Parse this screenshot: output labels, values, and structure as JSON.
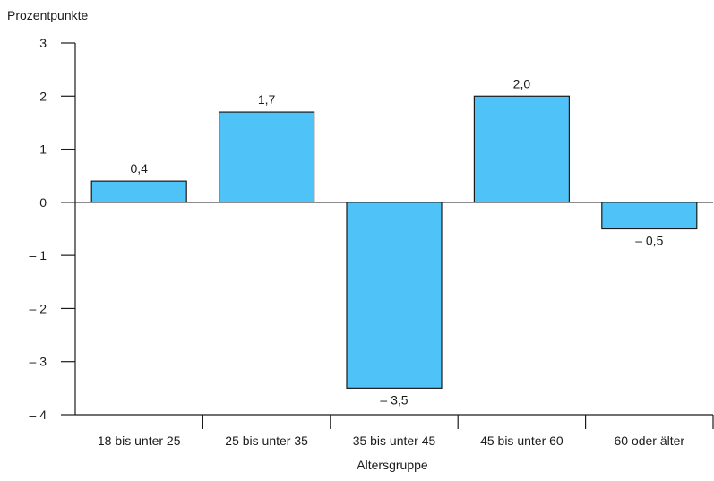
{
  "chart_data": {
    "type": "bar",
    "ylabel": "Prozentpunkte",
    "xlabel": "Altersgruppe",
    "categories": [
      "18 bis unter 25",
      "25 bis unter 35",
      "35 bis unter 45",
      "45 bis unter 60",
      "60 oder älter"
    ],
    "values": [
      0.4,
      1.7,
      -3.5,
      2.0,
      -0.5
    ],
    "value_labels": [
      "0,4",
      "1,7",
      "– 3,5",
      "2,0",
      "– 0,5"
    ],
    "ylim": [
      -4,
      3
    ],
    "yticks": [
      3,
      2,
      1,
      0,
      -1,
      -2,
      -3,
      -4
    ],
    "ytick_labels": [
      "3",
      "2",
      "1",
      "0",
      "– 1",
      "– 2",
      "– 3",
      "– 4"
    ],
    "grid": false,
    "legend": "none",
    "bar_color": "#4FC3F7"
  }
}
